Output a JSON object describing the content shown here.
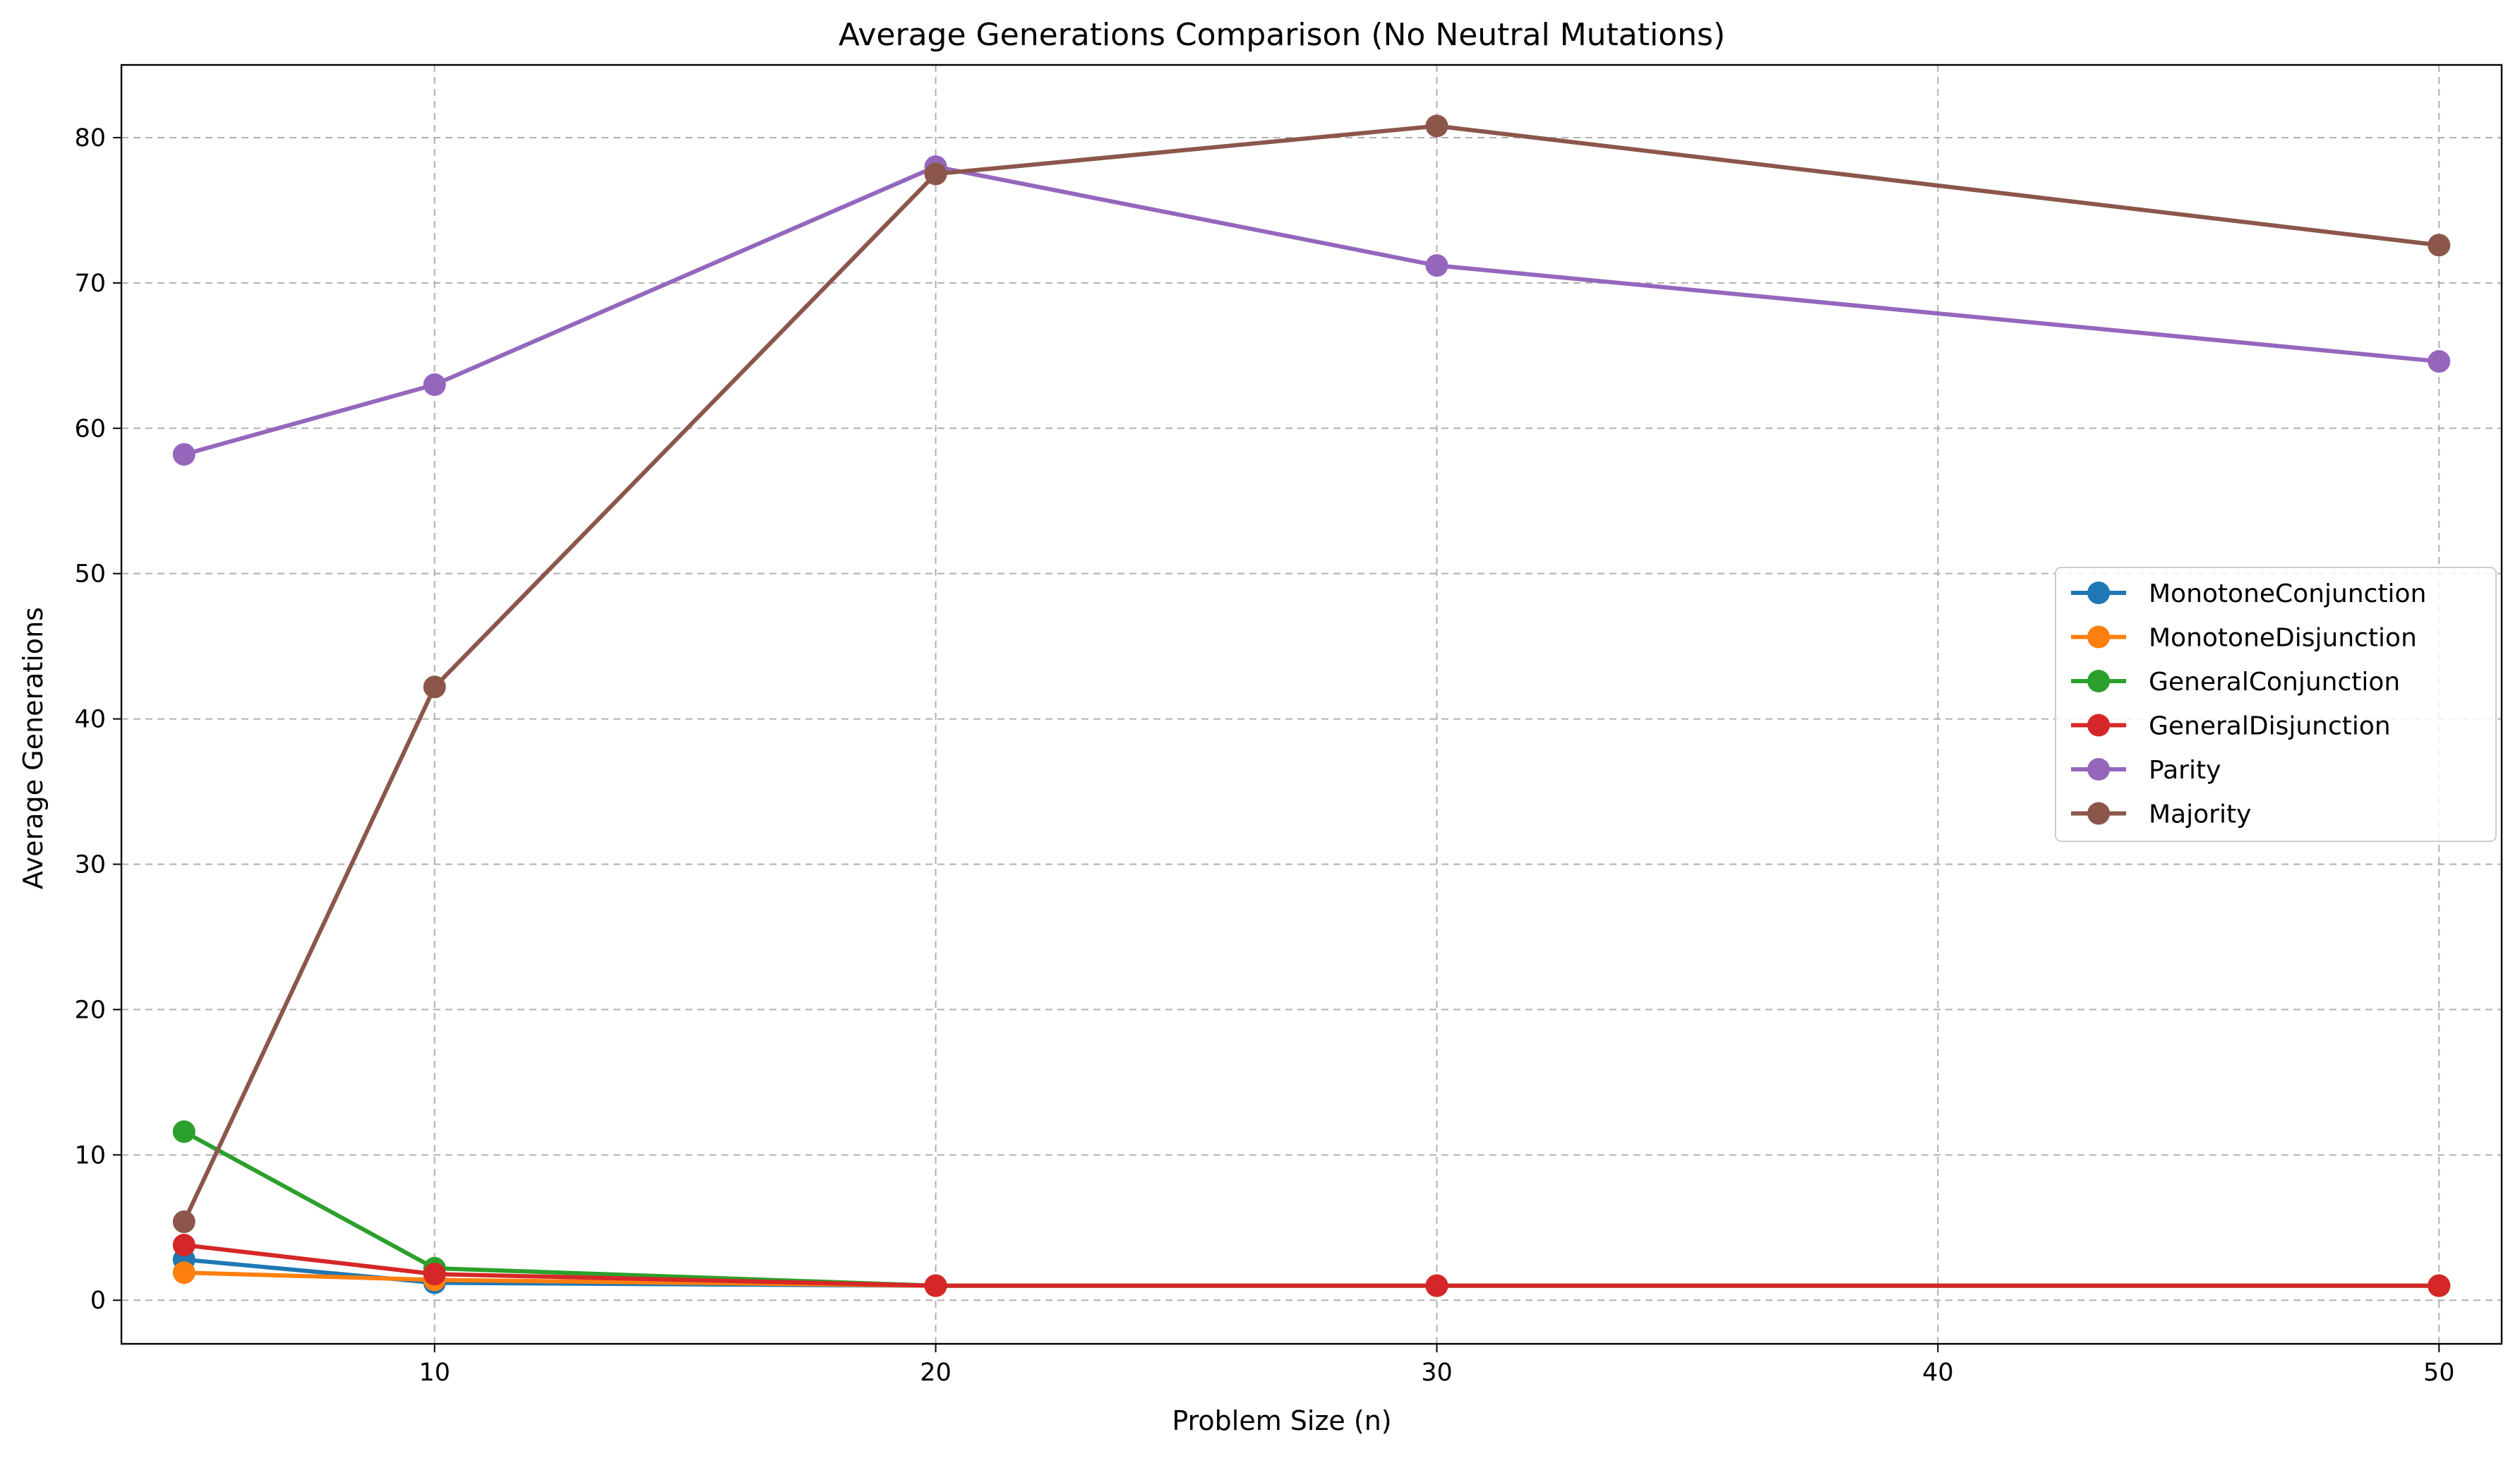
{
  "chart_data": {
    "type": "line",
    "title": "Average Generations Comparison (No Neutral Mutations)",
    "xlabel": "Problem Size (n)",
    "ylabel": "Average Generations",
    "x": [
      5,
      10,
      20,
      30,
      50
    ],
    "xlim": [
      3.75,
      51.25
    ],
    "ylim": [
      -3,
      85
    ],
    "xticks": [
      10,
      20,
      30,
      40,
      50
    ],
    "xtick_labels": [
      "10",
      "20",
      "30",
      "40",
      "50"
    ],
    "yticks": [
      0,
      10,
      20,
      30,
      40,
      50,
      60,
      70,
      80
    ],
    "ytick_labels": [
      "0",
      "10",
      "20",
      "30",
      "40",
      "50",
      "60",
      "70",
      "80"
    ],
    "grid": true,
    "legend_position": "center-right",
    "series": [
      {
        "name": "MonotoneConjunction",
        "color": "#1f77b4",
        "values": [
          2.8,
          1.2,
          1.0,
          1.0,
          1.0
        ]
      },
      {
        "name": "MonotoneDisjunction",
        "color": "#ff7f0e",
        "values": [
          1.9,
          1.4,
          1.0,
          1.0,
          1.0
        ]
      },
      {
        "name": "GeneralConjunction",
        "color": "#2ca02c",
        "values": [
          11.6,
          2.2,
          1.0,
          1.0,
          1.0
        ]
      },
      {
        "name": "GeneralDisjunction",
        "color": "#d62728",
        "values": [
          3.8,
          1.8,
          1.0,
          1.0,
          1.0
        ]
      },
      {
        "name": "Parity",
        "color": "#9467bd",
        "values": [
          58.2,
          63.0,
          78.0,
          71.2,
          64.6
        ]
      },
      {
        "name": "Majority",
        "color": "#8c564b",
        "values": [
          5.4,
          42.2,
          77.5,
          80.8,
          72.6
        ]
      }
    ]
  }
}
